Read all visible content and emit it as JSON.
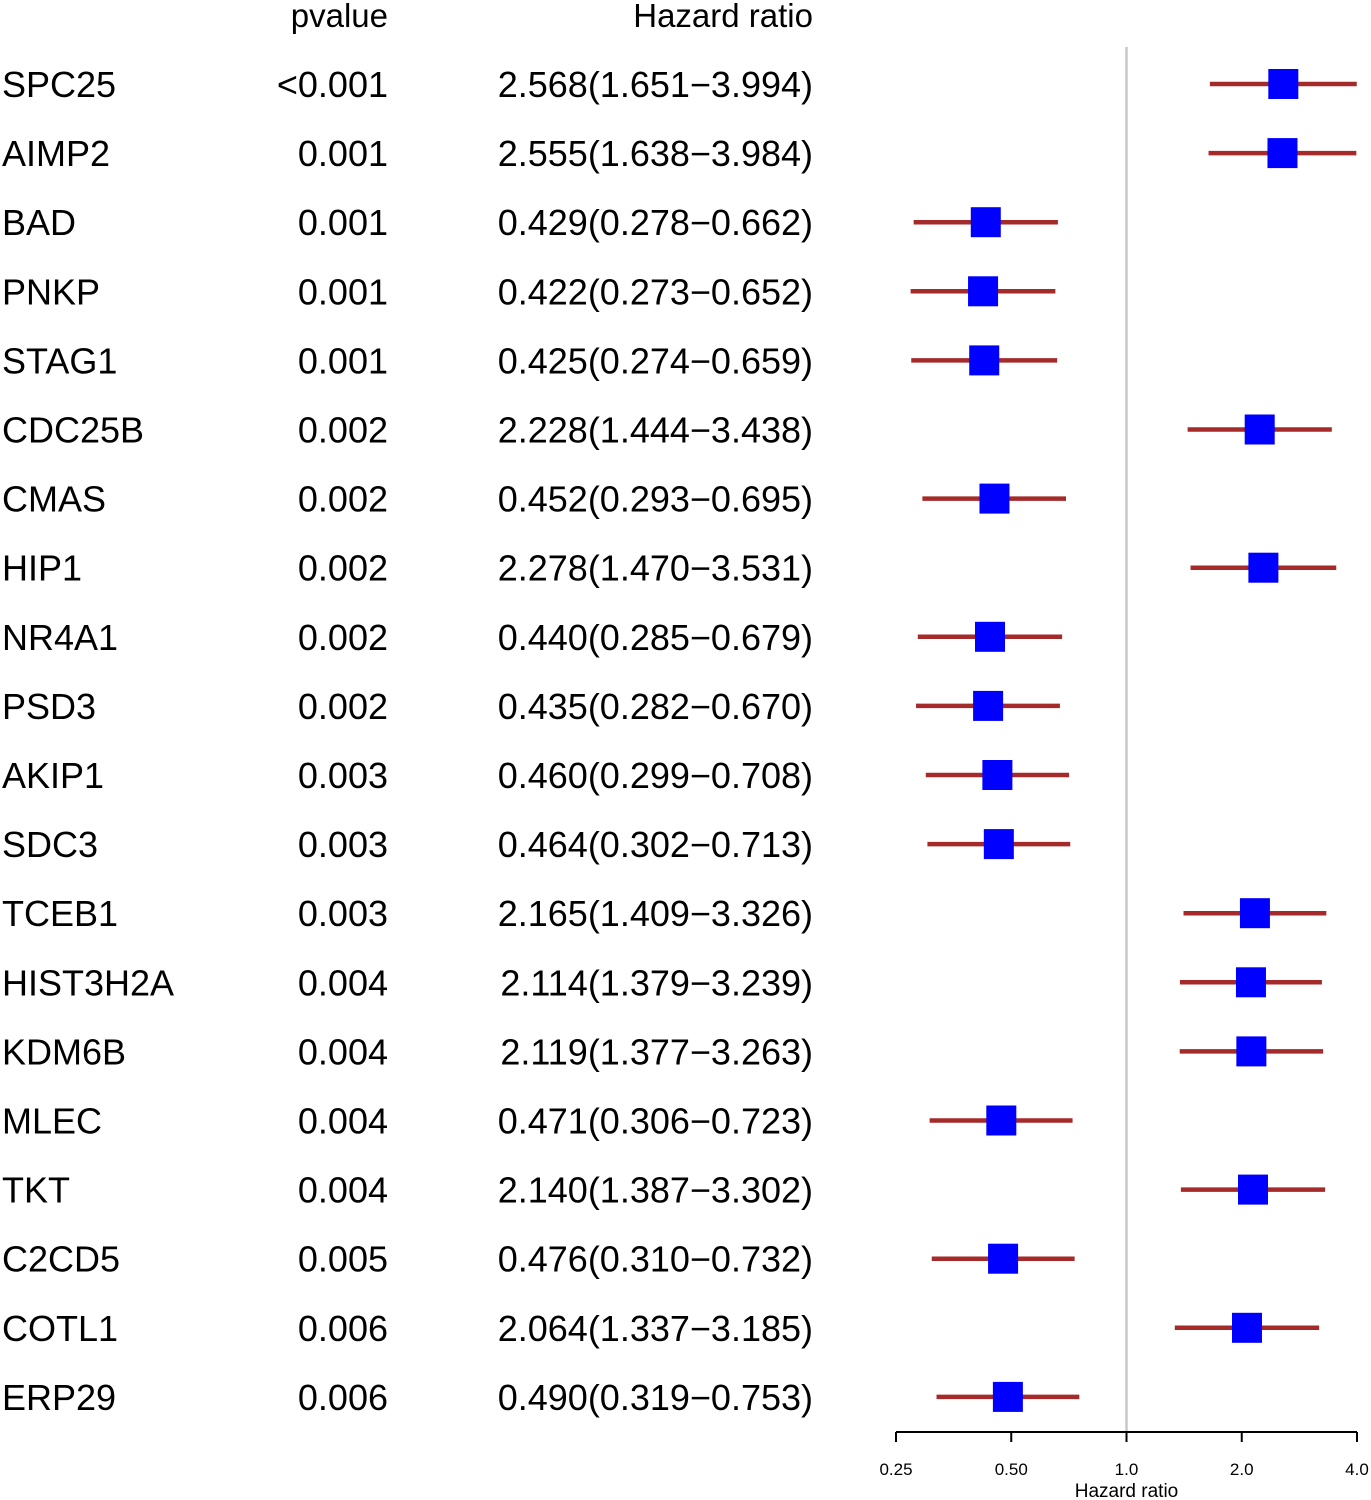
{
  "headers": {
    "pvalue": "pvalue",
    "hazard_ratio": "Hazard ratio"
  },
  "colors": {
    "box": "#0000ff",
    "ci_line": "#a52a2a",
    "reference_line": "#c8c8c8",
    "axis": "#000000"
  },
  "chart_data": {
    "type": "forest",
    "scale": "log2",
    "reference_value": 1.0,
    "xlabel": "Hazard ratio",
    "xlim": [
      0.25,
      4.0
    ],
    "xticks": [
      0.25,
      0.5,
      1.0,
      2.0,
      4.0
    ],
    "xtick_labels": [
      "0.25",
      "0.50",
      "1.0",
      "2.0",
      "4.0"
    ],
    "rows": [
      {
        "gene": "SPC25",
        "pvalue": "<0.001",
        "hr_text": "2.568(1.651−3.994)",
        "hr": 2.568,
        "lower": 1.651,
        "upper": 3.994
      },
      {
        "gene": "AIMP2",
        "pvalue": "0.001",
        "hr_text": "2.555(1.638−3.984)",
        "hr": 2.555,
        "lower": 1.638,
        "upper": 3.984
      },
      {
        "gene": "BAD",
        "pvalue": "0.001",
        "hr_text": "0.429(0.278−0.662)",
        "hr": 0.429,
        "lower": 0.278,
        "upper": 0.662
      },
      {
        "gene": "PNKP",
        "pvalue": "0.001",
        "hr_text": "0.422(0.273−0.652)",
        "hr": 0.422,
        "lower": 0.273,
        "upper": 0.652
      },
      {
        "gene": "STAG1",
        "pvalue": "0.001",
        "hr_text": "0.425(0.274−0.659)",
        "hr": 0.425,
        "lower": 0.274,
        "upper": 0.659
      },
      {
        "gene": "CDC25B",
        "pvalue": "0.002",
        "hr_text": "2.228(1.444−3.438)",
        "hr": 2.228,
        "lower": 1.444,
        "upper": 3.438
      },
      {
        "gene": "CMAS",
        "pvalue": "0.002",
        "hr_text": "0.452(0.293−0.695)",
        "hr": 0.452,
        "lower": 0.293,
        "upper": 0.695
      },
      {
        "gene": "HIP1",
        "pvalue": "0.002",
        "hr_text": "2.278(1.470−3.531)",
        "hr": 2.278,
        "lower": 1.47,
        "upper": 3.531
      },
      {
        "gene": "NR4A1",
        "pvalue": "0.002",
        "hr_text": "0.440(0.285−0.679)",
        "hr": 0.44,
        "lower": 0.285,
        "upper": 0.679
      },
      {
        "gene": "PSD3",
        "pvalue": "0.002",
        "hr_text": "0.435(0.282−0.670)",
        "hr": 0.435,
        "lower": 0.282,
        "upper": 0.67
      },
      {
        "gene": "AKIP1",
        "pvalue": "0.003",
        "hr_text": "0.460(0.299−0.708)",
        "hr": 0.46,
        "lower": 0.299,
        "upper": 0.708
      },
      {
        "gene": "SDC3",
        "pvalue": "0.003",
        "hr_text": "0.464(0.302−0.713)",
        "hr": 0.464,
        "lower": 0.302,
        "upper": 0.713
      },
      {
        "gene": "TCEB1",
        "pvalue": "0.003",
        "hr_text": "2.165(1.409−3.326)",
        "hr": 2.165,
        "lower": 1.409,
        "upper": 3.326
      },
      {
        "gene": "HIST3H2A",
        "pvalue": "0.004",
        "hr_text": "2.114(1.379−3.239)",
        "hr": 2.114,
        "lower": 1.379,
        "upper": 3.239
      },
      {
        "gene": "KDM6B",
        "pvalue": "0.004",
        "hr_text": "2.119(1.377−3.263)",
        "hr": 2.119,
        "lower": 1.377,
        "upper": 3.263
      },
      {
        "gene": "MLEC",
        "pvalue": "0.004",
        "hr_text": "0.471(0.306−0.723)",
        "hr": 0.471,
        "lower": 0.306,
        "upper": 0.723
      },
      {
        "gene": "TKT",
        "pvalue": "0.004",
        "hr_text": "2.140(1.387−3.302)",
        "hr": 2.14,
        "lower": 1.387,
        "upper": 3.302
      },
      {
        "gene": "C2CD5",
        "pvalue": "0.005",
        "hr_text": "0.476(0.310−0.732)",
        "hr": 0.476,
        "lower": 0.31,
        "upper": 0.732
      },
      {
        "gene": "COTL1",
        "pvalue": "0.006",
        "hr_text": "2.064(1.337−3.185)",
        "hr": 2.064,
        "lower": 1.337,
        "upper": 3.185
      },
      {
        "gene": "ERP29",
        "pvalue": "0.006",
        "hr_text": "0.490(0.319−0.753)",
        "hr": 0.49,
        "lower": 0.319,
        "upper": 0.753
      }
    ]
  }
}
